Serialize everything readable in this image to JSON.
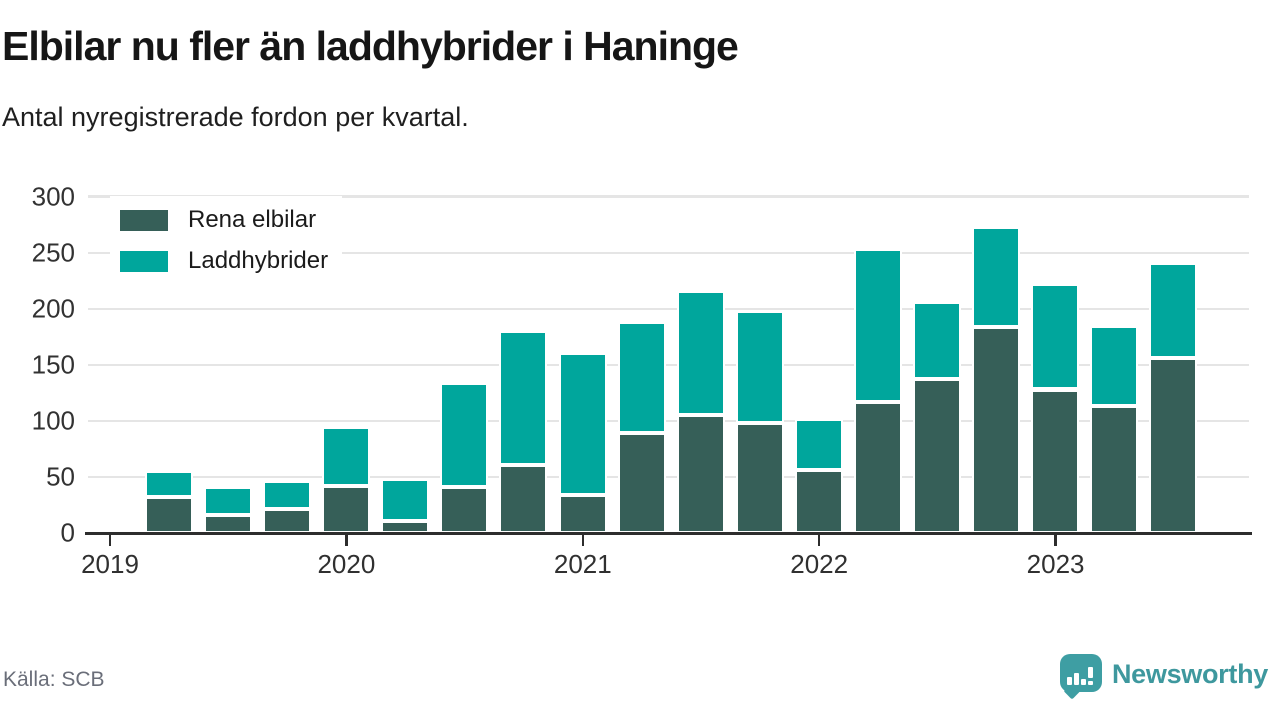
{
  "header": {
    "title": "Elbilar nu fler än laddhybrider i Haninge",
    "subtitle": "Antal nyregistrerade fordon per kvartal."
  },
  "source": {
    "label": "Källa: SCB"
  },
  "brand": {
    "name": "Newsworthy",
    "icon": "newsworthy-speech-bubble-bar-chart-icon",
    "text_color": "#3e989e",
    "icon_color": "#3e9ea3"
  },
  "colors": {
    "electric_dark": "#365f58",
    "hybrid_teal": "#00a69c",
    "gridline": "#e5e5e5",
    "axis": "#2d2d2d",
    "tick_text": "#323232"
  },
  "chart_data": {
    "type": "bar",
    "stacked": true,
    "title": "Elbilar nu fler än laddhybrider i Haninge",
    "subtitle": "Antal nyregistrerade fordon per kvartal.",
    "xlabel": "",
    "ylabel": "",
    "ylim": [
      0,
      300
    ],
    "y_ticks": [
      0,
      50,
      100,
      150,
      200,
      250,
      300
    ],
    "grid": "horizontal",
    "legend_position": "top-left",
    "x": [
      "2019 Q2",
      "2019 Q3",
      "2019 Q4",
      "2020 Q1",
      "2020 Q2",
      "2020 Q3",
      "2020 Q4",
      "2021 Q1",
      "2021 Q2",
      "2021 Q3",
      "2021 Q4",
      "2022 Q1",
      "2022 Q2",
      "2022 Q3",
      "2022 Q4",
      "2023 Q1",
      "2023 Q2",
      "2023 Q3"
    ],
    "x_tick_labels": [
      "2019",
      "2020",
      "2021",
      "2022",
      "2023"
    ],
    "series": [
      {
        "name": "Rena elbilar",
        "color": "#365f58",
        "values": [
          32,
          16,
          21,
          42,
          11,
          41,
          61,
          34,
          89,
          105,
          98,
          56,
          117,
          137,
          184,
          128,
          113,
          156
        ]
      },
      {
        "name": "Laddhybrider",
        "color": "#00a69c",
        "values": [
          23,
          25,
          25,
          53,
          37,
          93,
          119,
          127,
          99,
          111,
          100,
          46,
          136,
          69,
          89,
          94,
          72,
          85
        ]
      }
    ],
    "totals": [
      55,
      41,
      46,
      95,
      48,
      134,
      180,
      161,
      188,
      216,
      198,
      102,
      253,
      206,
      273,
      222,
      185,
      241
    ]
  }
}
